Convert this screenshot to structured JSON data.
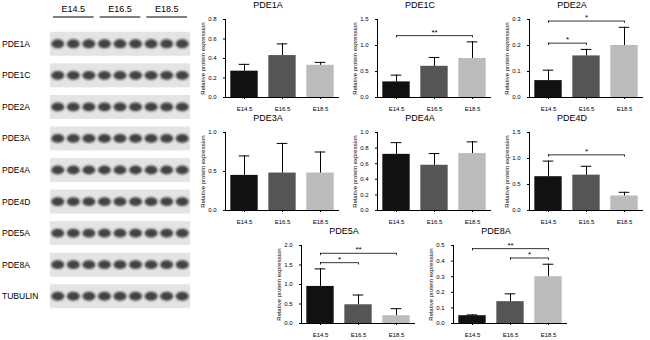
{
  "blot": {
    "lanes": [
      "E14.5",
      "E16.5",
      "E18.5"
    ],
    "rows": [
      "PDE1A",
      "PDE1C",
      "PDE2A",
      "PDE3A",
      "PDE4A",
      "PDE4D",
      "PDE5A",
      "PDE8A",
      "TUBULIN"
    ]
  },
  "chart_data": [
    {
      "type": "bar",
      "title": "PDE1A",
      "categories": [
        "E14.5",
        "E16.5",
        "E18.5"
      ],
      "values": [
        0.27,
        0.43,
        0.33
      ],
      "errors": [
        0.07,
        0.12,
        0.03
      ],
      "colors": [
        "#111111",
        "#555555",
        "#bbbbbb"
      ],
      "ylabel": "Relative protein expression",
      "ylim": [
        0,
        0.8
      ],
      "yticks": [
        {
          "value": 0,
          "label": "0.0"
        },
        0.2,
        0.4,
        0.6,
        0.8
      ],
      "significance": []
    },
    {
      "type": "bar",
      "title": "PDE1C",
      "categories": [
        "E14.5",
        "E16.5",
        "E18.5"
      ],
      "values": [
        0.3,
        0.6,
        0.75
      ],
      "errors": [
        0.13,
        0.17,
        0.32
      ],
      "colors": [
        "#111111",
        "#555555",
        "#bbbbbb"
      ],
      "ylabel": "Relative protein expression",
      "ylim": [
        0,
        1.5
      ],
      "yticks": [
        {
          "value": 0,
          "label": "0.0"
        },
        0.5,
        {
          "value": 1,
          "label": "1.0"
        },
        1.5
      ],
      "significance": [
        {
          "from": "E14.5",
          "to": "E18.5",
          "label": "**"
        }
      ]
    },
    {
      "type": "bar",
      "title": "PDE2A",
      "categories": [
        "E14.5",
        "E16.5",
        "E18.5"
      ],
      "values": [
        0.065,
        0.16,
        0.2
      ],
      "errors": [
        0.04,
        0.025,
        0.07
      ],
      "colors": [
        "#111111",
        "#555555",
        "#bbbbbb"
      ],
      "ylabel": "Relative protein expression",
      "ylim": [
        0,
        0.3
      ],
      "yticks": [
        {
          "value": 0,
          "label": "0.0"
        },
        0.1,
        0.2,
        0.3
      ],
      "significance": [
        {
          "from": "E14.5",
          "to": "E16.5",
          "label": "*"
        },
        {
          "from": "E14.5",
          "to": "E18.5",
          "label": "*"
        }
      ]
    },
    {
      "type": "bar",
      "title": "PDE3A",
      "categories": [
        "E14.5",
        "E16.5",
        "E18.5"
      ],
      "values": [
        0.45,
        0.48,
        0.48
      ],
      "errors": [
        0.25,
        0.38,
        0.27
      ],
      "colors": [
        "#111111",
        "#555555",
        "#bbbbbb"
      ],
      "ylabel": "Relative protein expression",
      "ylim": [
        0,
        1
      ],
      "yticks": [
        {
          "value": 0,
          "label": "0.0"
        },
        0.5,
        {
          "value": 1,
          "label": "1.0"
        }
      ],
      "significance": []
    },
    {
      "type": "bar",
      "title": "PDE4A",
      "categories": [
        "E14.5",
        "E16.5",
        "E18.5"
      ],
      "values": [
        0.72,
        0.58,
        0.73
      ],
      "errors": [
        0.15,
        0.15,
        0.15
      ],
      "colors": [
        "#111111",
        "#555555",
        "#bbbbbb"
      ],
      "ylabel": "Relative protein expression",
      "ylim": [
        0,
        1
      ],
      "yticks": [
        {
          "value": 0,
          "label": "0.0"
        },
        0.2,
        0.4,
        0.6,
        0.8,
        {
          "value": 1,
          "label": "1.0"
        }
      ],
      "significance": []
    },
    {
      "type": "bar",
      "title": "PDE4D",
      "categories": [
        "E14.5",
        "E16.5",
        "E18.5"
      ],
      "values": [
        0.65,
        0.68,
        0.28
      ],
      "errors": [
        0.3,
        0.17,
        0.07
      ],
      "colors": [
        "#111111",
        "#555555",
        "#bbbbbb"
      ],
      "ylabel": "Relative protein expression",
      "ylim": [
        0,
        1.5
      ],
      "yticks": [
        {
          "value": 0,
          "label": "0.0"
        },
        0.5,
        {
          "value": 1,
          "label": "1.0"
        },
        1.5
      ],
      "significance": [
        {
          "from": "E14.5",
          "to": "E18.5",
          "label": "*"
        }
      ]
    },
    {
      "type": "bar",
      "title": "PDE5A",
      "categories": [
        "E14.5",
        "E16.5",
        "E18.5"
      ],
      "values": [
        0.95,
        0.48,
        0.2
      ],
      "errors": [
        0.45,
        0.25,
        0.18
      ],
      "colors": [
        "#111111",
        "#555555",
        "#bbbbbb"
      ],
      "ylabel": "Relative protein expression",
      "ylim": [
        0,
        2
      ],
      "yticks": [
        {
          "value": 0,
          "label": "0.0"
        },
        0.5,
        {
          "value": 1,
          "label": "1.0"
        },
        1.5,
        {
          "value": 2,
          "label": "2.0"
        }
      ],
      "significance": [
        {
          "from": "E14.5",
          "to": "E16.5",
          "label": "*"
        },
        {
          "from": "E14.5",
          "to": "E18.5",
          "label": "**"
        }
      ]
    },
    {
      "type": "bar",
      "title": "PDE8A",
      "categories": [
        "E14.5",
        "E16.5",
        "E18.5"
      ],
      "values": [
        0.05,
        0.14,
        0.3
      ],
      "errors": [
        0.005,
        0.05,
        0.08
      ],
      "colors": [
        "#111111",
        "#555555",
        "#bbbbbb"
      ],
      "ylabel": "Relative protein expression",
      "ylim": [
        0,
        0.5
      ],
      "yticks": [
        {
          "value": 0,
          "label": "0.0"
        },
        0.1,
        0.2,
        0.3,
        0.4,
        0.5
      ],
      "significance": [
        {
          "from": "E16.5",
          "to": "E18.5",
          "label": "*"
        },
        {
          "from": "E14.5",
          "to": "E18.5",
          "label": "**"
        }
      ]
    }
  ]
}
